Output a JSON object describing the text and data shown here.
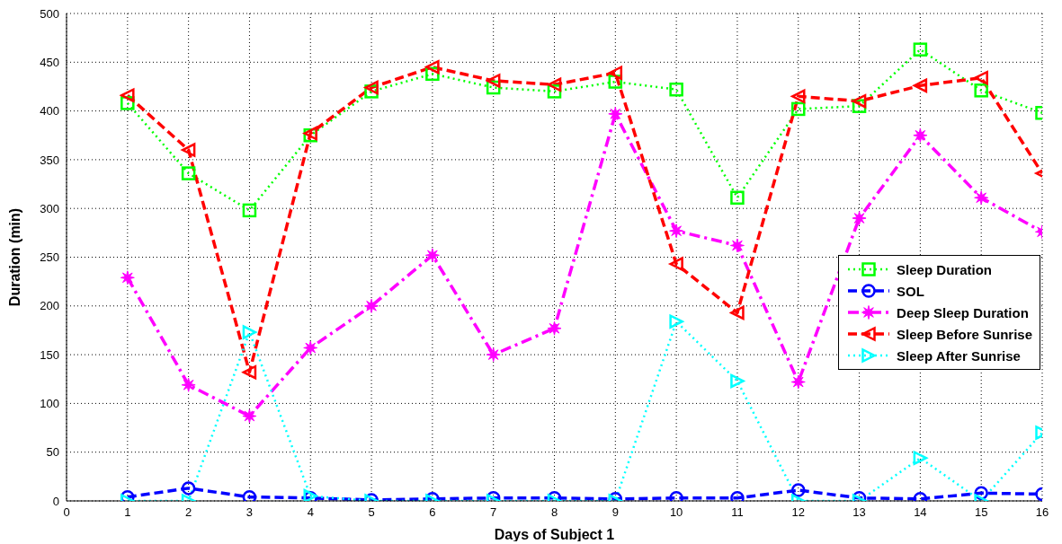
{
  "chart_data": {
    "type": "line",
    "xlabel": "Days of Subject 1",
    "ylabel": "Duration (min)",
    "x": [
      1,
      2,
      3,
      4,
      5,
      6,
      7,
      8,
      9,
      10,
      11,
      12,
      13,
      14,
      15,
      16
    ],
    "xlim": [
      0,
      16
    ],
    "xticks": [
      0,
      1,
      2,
      3,
      4,
      5,
      6,
      7,
      8,
      9,
      10,
      11,
      12,
      13,
      14,
      15,
      16
    ],
    "ylim": [
      0,
      500
    ],
    "yticks": [
      0,
      50,
      100,
      150,
      200,
      250,
      300,
      350,
      400,
      450,
      500
    ],
    "grid": true,
    "legend": "right",
    "series": [
      {
        "name": "Sleep Duration",
        "color": "#00ff00",
        "marker": "square",
        "line_style": "dotted",
        "values": [
          408,
          336,
          298,
          375,
          420,
          438,
          424,
          420,
          430,
          422,
          311,
          402,
          405,
          463,
          421,
          398
        ]
      },
      {
        "name": "SOL",
        "color": "#0000ff",
        "marker": "circle",
        "line_style": "dashed",
        "values": [
          4,
          13,
          4,
          3,
          1,
          2,
          3,
          3,
          2,
          3,
          3,
          11,
          3,
          2,
          8,
          7
        ]
      },
      {
        "name": "Deep Sleep Duration",
        "color": "#ff00ff",
        "marker": "star",
        "line_style": "dashdot",
        "values": [
          229,
          119,
          87,
          157,
          200,
          252,
          150,
          177,
          397,
          277,
          262,
          122,
          290,
          375,
          311,
          276
        ]
      },
      {
        "name": "Sleep Before Sunrise",
        "color": "#ff0000",
        "marker": "triangle-left",
        "line_style": "dashed",
        "values": [
          416,
          360,
          132,
          377,
          424,
          445,
          431,
          427,
          439,
          243,
          193,
          415,
          410,
          426,
          434,
          336
        ]
      },
      {
        "name": "Sleep After Sunrise",
        "color": "#00ffff",
        "marker": "triangle-right",
        "line_style": "dotted",
        "values": [
          0,
          0,
          173,
          5,
          0,
          0,
          0,
          0,
          0,
          184,
          123,
          0,
          0,
          44,
          0,
          70
        ]
      }
    ]
  }
}
